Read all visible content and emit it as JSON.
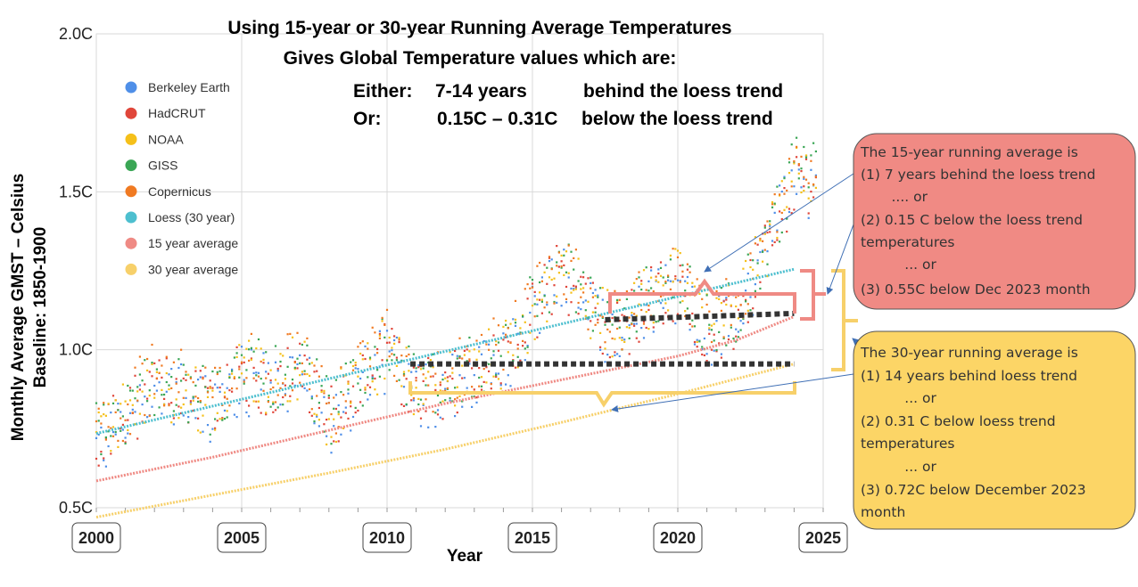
{
  "chart_data": {
    "type": "scatter",
    "title_lines": [
      "Using 15-year or 30-year Running Average Temperatures",
      "Gives Global Temperature values which are:"
    ],
    "subtitle_rows": [
      [
        "Either:",
        "7-14 years",
        "behind the loess trend"
      ],
      [
        "Or:",
        "0.15C – 0.31C",
        "below  the loess trend"
      ]
    ],
    "xlabel": "Year",
    "ylabel_lines": [
      "Monthly Average GMST – Celsius",
      "Baseline: 1850-1900"
    ],
    "xlim": [
      2000,
      2025
    ],
    "ylim": [
      0.5,
      2.0
    ],
    "x_ticks": [
      "2000",
      "2005",
      "2010",
      "2015",
      "2020",
      "2025"
    ],
    "y_ticks": [
      "0.5C",
      "1.0C",
      "1.5C",
      "2.0C"
    ],
    "grid": true,
    "legend_position": "top-left",
    "series": [
      {
        "name": "Berkeley Earth",
        "color": "#4f8fe8"
      },
      {
        "name": "HadCRUT",
        "color": "#e0463a"
      },
      {
        "name": "NOAA",
        "color": "#f5c01a"
      },
      {
        "name": "GISS",
        "color": "#3aa655"
      },
      {
        "name": "Copernicus",
        "color": "#f07a22"
      },
      {
        "name": "Loess (30 year)",
        "color": "#4dbfcf",
        "x": [
          2000.0,
          2024.0
        ],
        "y": [
          0.735,
          1.255
        ]
      },
      {
        "name": "15 year average",
        "color": "#ef8a84",
        "x": [
          2000,
          2004,
          2008,
          2012,
          2016,
          2020,
          2022,
          2024
        ],
        "y": [
          0.585,
          0.66,
          0.745,
          0.83,
          0.905,
          0.98,
          1.03,
          1.105
        ]
      },
      {
        "name": "30 year average",
        "color": "#f7d06a",
        "x": [
          2000,
          2004,
          2008,
          2012,
          2016,
          2020,
          2024
        ],
        "y": [
          0.47,
          0.54,
          0.61,
          0.685,
          0.77,
          0.86,
          0.955
        ]
      }
    ],
    "monthly_anomaly_anchors": {
      "x": [
        2000,
        2001,
        2002,
        2003,
        2004,
        2005,
        2006,
        2007,
        2008,
        2009,
        2010,
        2011,
        2012,
        2013,
        2014,
        2015,
        2016,
        2017,
        2018,
        2019,
        2020,
        2021,
        2022,
        2023,
        2024
      ],
      "y": [
        0.71,
        0.8,
        0.89,
        0.87,
        0.82,
        0.93,
        0.9,
        0.95,
        0.79,
        0.9,
        1.0,
        0.87,
        0.9,
        0.95,
        0.98,
        1.12,
        1.26,
        1.14,
        1.05,
        1.17,
        1.22,
        1.08,
        1.1,
        1.32,
        1.55
      ]
    },
    "reference_lines": [
      {
        "color": "#333333",
        "style": "dotted",
        "x": [
          2010.8,
          2024.0
        ],
        "y": [
          0.955,
          0.955
        ]
      },
      {
        "color": "#333333",
        "style": "dotted",
        "x": [
          2017.5,
          2024.0
        ],
        "y": [
          1.095,
          1.115
        ]
      }
    ],
    "callouts": [
      {
        "color": "#f08a84",
        "lines": [
          "The 15-year running average is",
          "(1) 7 years behind the loess trend",
          "       .... or",
          "(2) 0.15 C below the loess trend",
          "temperatures",
          "          ... or",
          "(3) 0.55C below Dec 2023 month"
        ]
      },
      {
        "color": "#fcd566",
        "lines": [
          "The 30-year running average is",
          "(1) 14 years behind loess trend",
          "          ... or",
          "(2) 0.31 C below loess trend",
          "temperatures",
          "          ... or",
          "(3) 0.72C below December 2023",
          "month"
        ]
      }
    ]
  }
}
